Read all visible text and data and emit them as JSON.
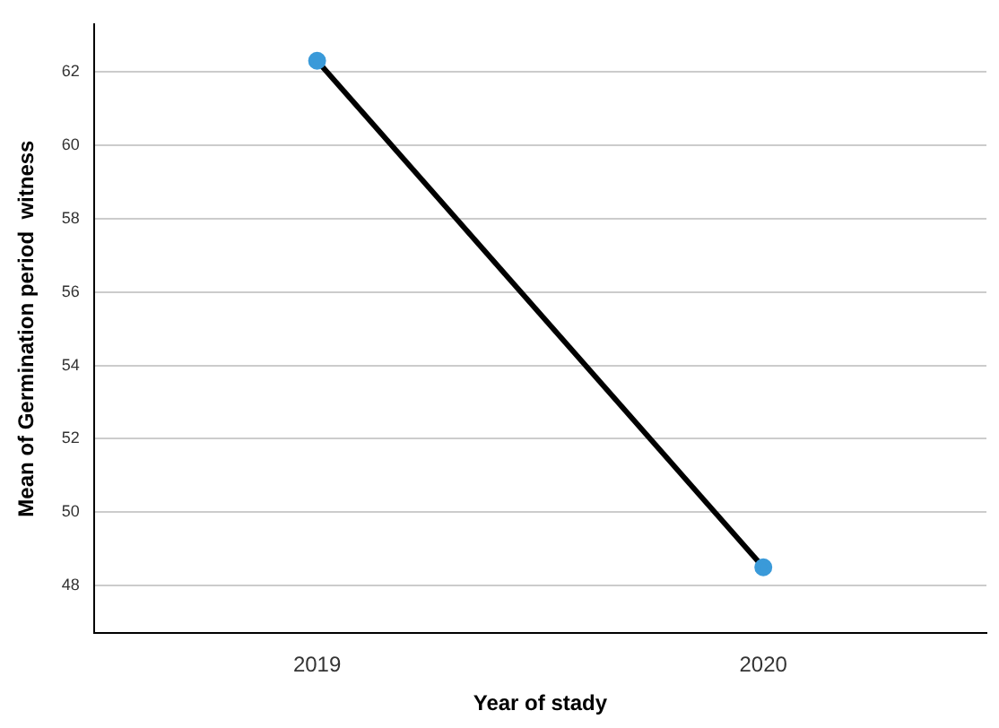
{
  "chart_data": {
    "type": "line",
    "xlabel": "Year of stady",
    "ylabel": "Mean of Germination period  witness",
    "categories": [
      "2019",
      "2020"
    ],
    "series": [
      {
        "color": "#000000",
        "colors": [
          "#3a9ad9",
          "#3a9ad9"
        ],
        "values": [
          62.3,
          48.5
        ]
      }
    ],
    "ylim": [
      46.7,
      63.3
    ],
    "yticks": [
      48,
      50,
      52,
      54,
      56,
      58,
      60,
      62
    ],
    "grid": "y",
    "marker": "circle",
    "line_style": "solid",
    "legend": false
  }
}
